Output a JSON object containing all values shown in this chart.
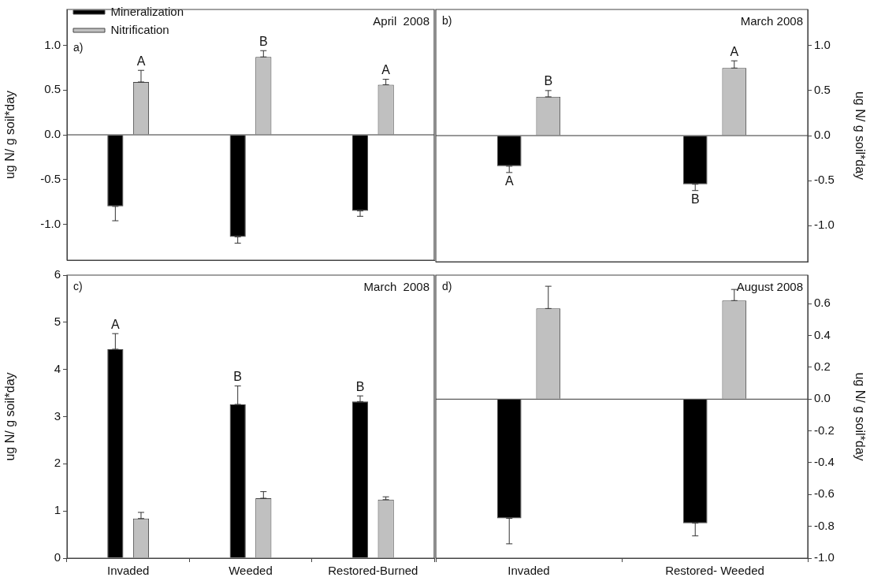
{
  "chart_data": [
    {
      "type": "bar",
      "title": "April  2008",
      "ylabel": "ug N/ g soil*day",
      "categories": [
        null,
        null,
        null
      ],
      "ylim": [
        -1.4,
        1.4
      ],
      "yticks": [
        {
          "value": -1,
          "label": "-1.0"
        },
        {
          "value": -0.5,
          "label": "-0.5"
        },
        {
          "value": 0,
          "label": "0.0"
        },
        {
          "value": 0.5,
          "label": "0.5"
        },
        {
          "value": 1,
          "label": "1.0"
        }
      ],
      "grid": false,
      "legend": "top left",
      "tick_labels": "y",
      "ref_lines": [
        {
          "axis": "y",
          "value": 0
        }
      ],
      "series": [
        {
          "name": "Mineralization",
          "color": "#000000",
          "values": [
            -0.8,
            -1.14,
            -0.85
          ],
          "errors": [
            [
              -0.96,
              -0.8
            ],
            [
              -1.21,
              -1.14
            ],
            [
              -0.91,
              -0.85
            ]
          ]
        },
        {
          "name": "Nitrification",
          "color": "#c0c0c0",
          "values": [
            0.59,
            0.87,
            0.56
          ],
          "errors": [
            [
              0.59,
              0.72
            ],
            [
              0.87,
              0.94
            ],
            [
              0.56,
              0.62
            ]
          ]
        }
      ],
      "annotations": [
        "a)",
        "A",
        "B",
        "A"
      ]
    },
    {
      "type": "bar",
      "title": "March 2008",
      "ylabel": "ug N/ g soil*day",
      "categories": [
        null,
        null
      ],
      "ylim": [
        -1.4,
        1.4
      ],
      "yticks": [
        {
          "value": -1,
          "label": "-1.0"
        },
        {
          "value": -0.5,
          "label": "-0.5"
        },
        {
          "value": 0,
          "label": "0.0"
        },
        {
          "value": 0.5,
          "label": "0.5"
        },
        {
          "value": 1,
          "label": "1.0"
        }
      ],
      "grid": false,
      "tick_labels": "y",
      "ref_lines": [
        {
          "axis": "y",
          "value": 0
        }
      ],
      "series": [
        {
          "color": "#000000",
          "values": [
            -0.34,
            -0.54
          ],
          "errors": [
            [
              -0.41,
              -0.34
            ],
            [
              -0.61,
              -0.54
            ]
          ]
        },
        {
          "color": "#c0c0c0",
          "values": [
            0.43,
            0.75
          ],
          "errors": [
            [
              0.43,
              0.5
            ],
            [
              0.75,
              0.83
            ]
          ]
        }
      ],
      "annotations": [
        "b)",
        "A",
        "B",
        "B",
        "A"
      ]
    },
    {
      "type": "bar",
      "title": "March  2008",
      "ylabel": "ug N/ g soil*day",
      "categories": [
        "Invaded",
        "Weeded",
        "Restored-Burned"
      ],
      "ylim": [
        0,
        6
      ],
      "yticks": [
        0,
        1,
        2,
        3,
        4,
        5,
        6
      ],
      "grid": false,
      "series": [
        {
          "color": "#000000",
          "values": [
            4.43,
            3.26,
            3.32
          ],
          "errors": [
            [
              4.43,
              4.76
            ],
            [
              3.26,
              3.65
            ],
            [
              3.32,
              3.44
            ]
          ]
        },
        {
          "color": "#c0c0c0",
          "values": [
            0.84,
            1.27,
            1.24
          ],
          "errors": [
            [
              0.84,
              0.97
            ],
            [
              1.27,
              1.41
            ],
            [
              1.24,
              1.3
            ]
          ]
        }
      ],
      "annotations": [
        "c)",
        "A",
        "B",
        "B"
      ]
    },
    {
      "type": "bar",
      "title": "August 2008",
      "ylabel": "ug N/ g soil*day",
      "categories": [
        "Invaded",
        "Restored- Weeded"
      ],
      "ylim": [
        -1.0,
        0.78
      ],
      "yticks": [
        {
          "value": -1,
          "label": "-1.0"
        },
        {
          "value": -0.8,
          "label": "-0.8"
        },
        {
          "value": -0.6,
          "label": "-0.6"
        },
        {
          "value": -0.4,
          "label": "-0.4"
        },
        {
          "value": -0.2,
          "label": "-0.2"
        },
        {
          "value": 0,
          "label": "0.0"
        },
        {
          "value": 0.2,
          "label": "0.2"
        },
        {
          "value": 0.4,
          "label": "0.4"
        },
        {
          "value": 0.6,
          "label": "0.6"
        }
      ],
      "grid": false,
      "ref_lines": [
        {
          "axis": "y",
          "value": 0
        }
      ],
      "series": [
        {
          "color": "#000000",
          "values": [
            -0.75,
            -0.78
          ],
          "errors": [
            [
              -0.91,
              -0.75
            ],
            [
              -0.86,
              -0.78
            ]
          ]
        },
        {
          "color": "#c0c0c0",
          "values": [
            0.57,
            0.62
          ],
          "errors": [
            [
              0.57,
              0.71
            ],
            [
              0.62,
              0.69
            ]
          ]
        }
      ],
      "annotations": [
        "d)"
      ]
    }
  ]
}
